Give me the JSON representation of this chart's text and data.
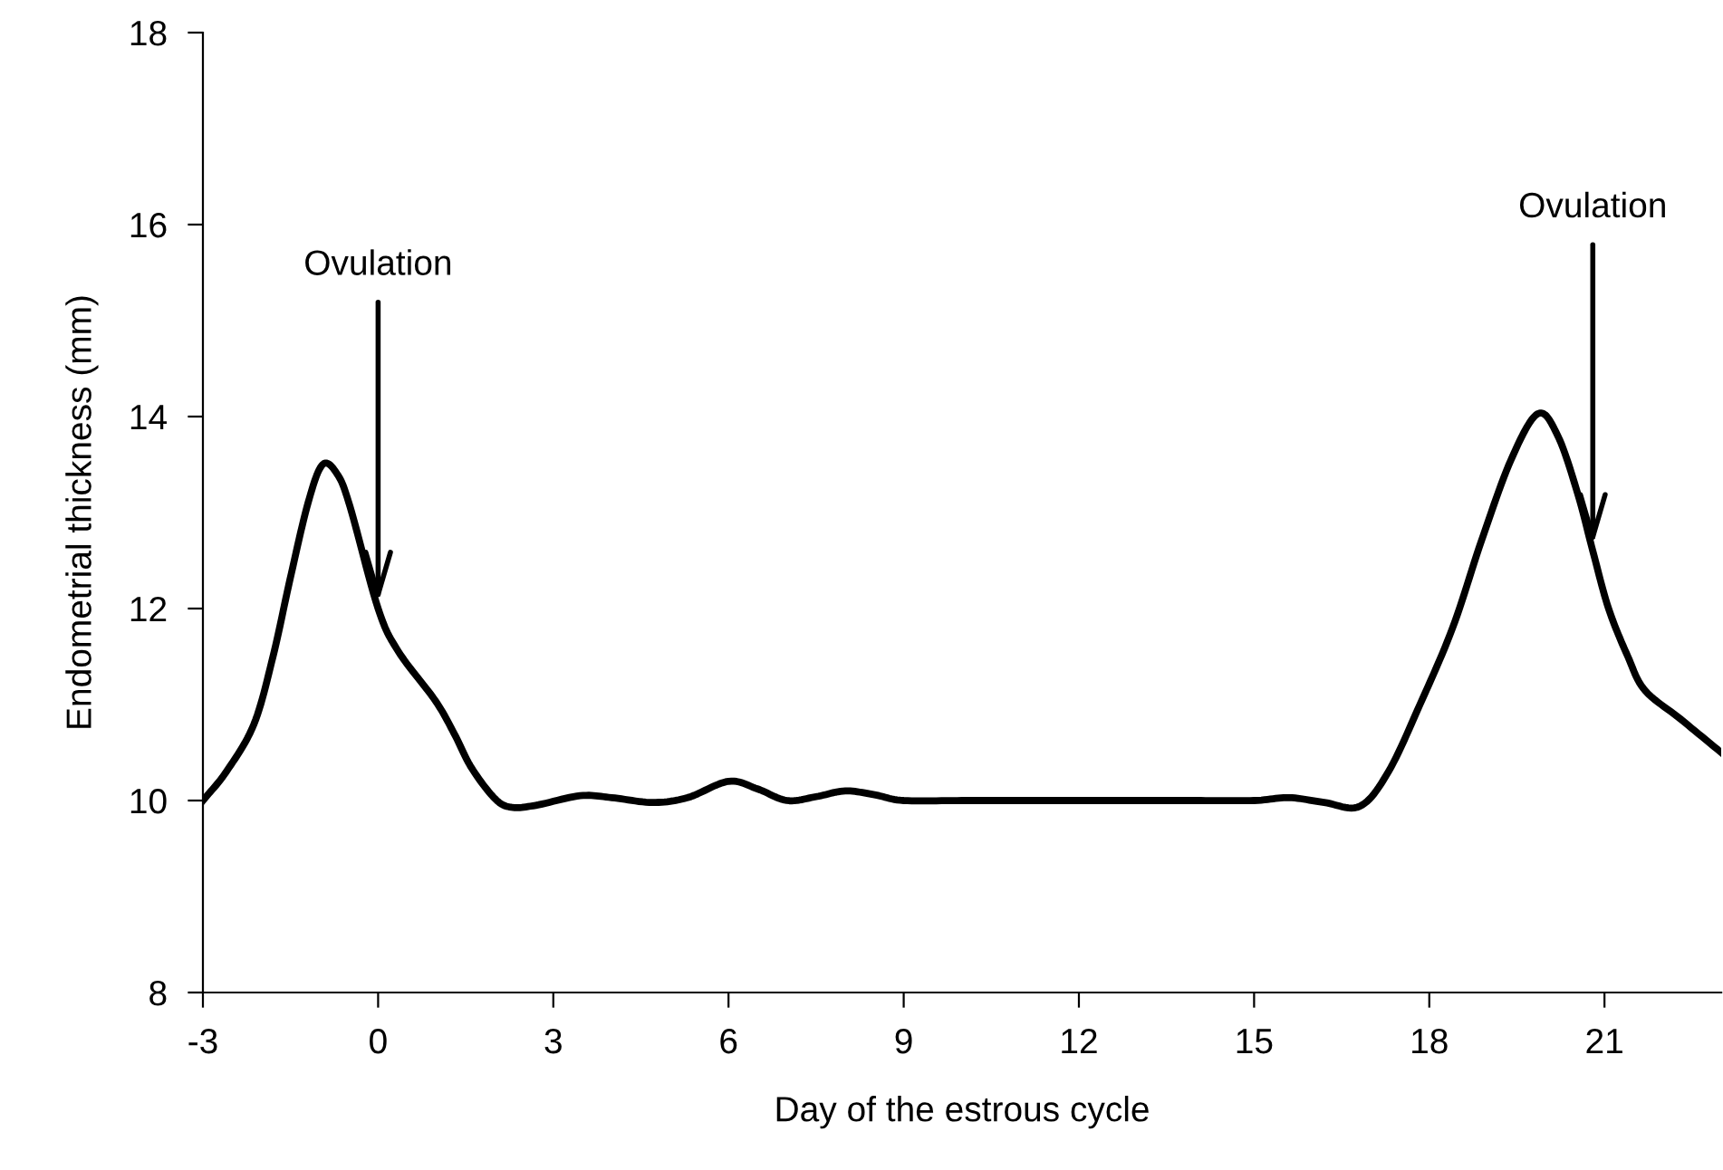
{
  "chart_data": {
    "type": "line",
    "xlabel": "Day of the estrous cycle",
    "ylabel": "Endometrial thickness (mm)",
    "series": [
      {
        "color": "#000000",
        "x": [
          -3,
          -2.6,
          -2.13,
          -1.8,
          -1.51,
          -1.2,
          -0.95,
          -0.7,
          -0.48,
          0,
          0.35,
          0.98,
          1.3,
          1.6,
          2.0,
          2.28,
          2.7,
          3.46,
          4.0,
          4.7,
          5.3,
          6.0,
          6.5,
          7.0,
          7.5,
          8.0,
          8.5,
          9.0,
          10,
          11,
          12,
          13,
          14,
          15,
          15.6,
          16.2,
          16.81,
          17.3,
          17.84,
          18.4,
          18.89,
          19.4,
          19.86,
          20.2,
          20.54,
          20.8,
          21.07,
          21.4,
          21.69,
          22.3,
          23
        ],
        "values": [
          10,
          10.3,
          10.79,
          11.5,
          12.3,
          13.1,
          13.5,
          13.4,
          13.06,
          12.0,
          11.55,
          11.04,
          10.7,
          10.34,
          10.02,
          9.93,
          9.95,
          10.05,
          10.03,
          9.98,
          10.03,
          10.2,
          10.12,
          10.0,
          10.04,
          10.1,
          10.06,
          10.0,
          10,
          10,
          10,
          10,
          10,
          10,
          10.03,
          9.98,
          9.94,
          10.3,
          11.0,
          11.8,
          12.7,
          13.55,
          14.03,
          13.8,
          13.2,
          12.6,
          12.0,
          11.5,
          11.15,
          10.85,
          10.5
        ]
      }
    ],
    "xlim": [
      -3,
      23
    ],
    "xticks": [
      -3,
      0,
      3,
      6,
      9,
      12,
      15,
      18,
      21
    ],
    "ylim": [
      8,
      18
    ],
    "yticks": [
      8,
      10,
      12,
      14,
      16,
      18
    ],
    "grid": false,
    "marker": "none",
    "line_style": "solid",
    "annotations": [
      {
        "text": "Ovulation",
        "x": 0,
        "y": 12.0
      },
      {
        "text": "Ovulation",
        "x": 20.8,
        "y": 12.6
      }
    ]
  }
}
